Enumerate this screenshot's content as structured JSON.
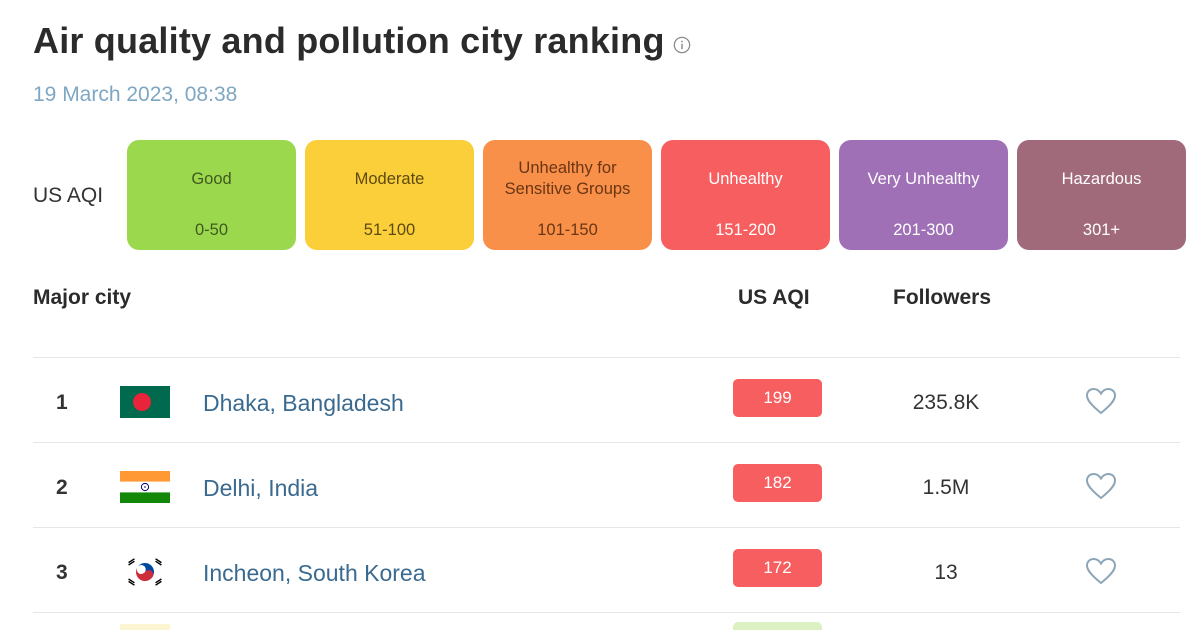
{
  "header": {
    "title": "Air quality and pollution city ranking",
    "info_icon": "info-circle-icon",
    "date": "19 March 2023, 08:38"
  },
  "legend": {
    "label": "US AQI",
    "levels": [
      {
        "name": "Good",
        "range": "0-50",
        "color": "#9cd84e",
        "text_color": "#3f5a1e"
      },
      {
        "name": "Moderate",
        "range": "51-100",
        "color": "#facf39",
        "text_color": "#5d4a11"
      },
      {
        "name": "Unhealthy for Sensitive Groups",
        "range": "101-150",
        "color": "#f99049",
        "text_color": "#6a3513"
      },
      {
        "name": "Unhealthy",
        "range": "151-200",
        "color": "#f65e5f",
        "text_color": "#ffffff"
      },
      {
        "name": "Very Unhealthy",
        "range": "201-300",
        "color": "#a070b6",
        "text_color": "#ffffff"
      },
      {
        "name": "Hazardous",
        "range": "301+",
        "color": "#a06a7b",
        "text_color": "#ffffff"
      }
    ]
  },
  "table": {
    "headers": {
      "city": "Major city",
      "aqi": "US AQI",
      "followers": "Followers"
    },
    "rows": [
      {
        "rank": "1",
        "flag": "bangladesh-flag-icon",
        "city": "Dhaka, Bangladesh",
        "aqi": "199",
        "aqi_color": "#f65e5f",
        "followers": "235.8K",
        "heart": "heart-outline-icon"
      },
      {
        "rank": "2",
        "flag": "india-flag-icon",
        "city": "Delhi, India",
        "aqi": "182",
        "aqi_color": "#f65e5f",
        "followers": "1.5M",
        "heart": "heart-outline-icon"
      },
      {
        "rank": "3",
        "flag": "south-korea-flag-icon",
        "city": "Incheon, South Korea",
        "aqi": "172",
        "aqi_color": "#f65e5f",
        "followers": "13",
        "heart": "heart-outline-icon"
      }
    ]
  }
}
